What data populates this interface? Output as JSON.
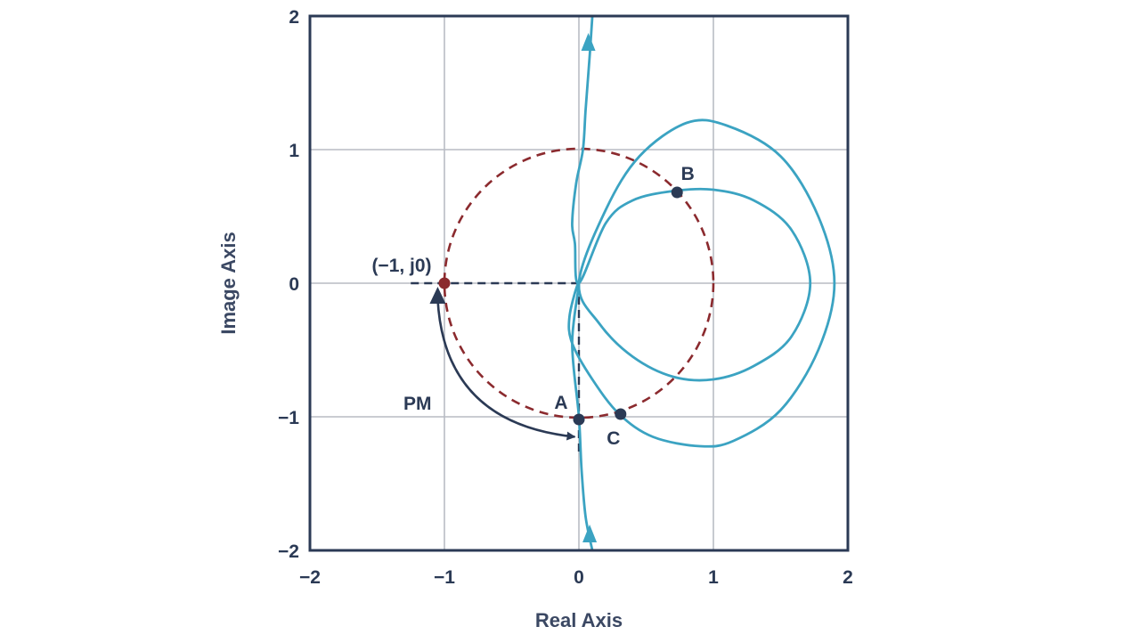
{
  "chart_data": {
    "type": "scatter",
    "title": "",
    "xlabel": "Real Axis",
    "ylabel": "Image Axis",
    "xlim": [
      -2,
      2
    ],
    "ylim": [
      -2,
      2
    ],
    "xticks": [
      -2,
      -1,
      0,
      1,
      2
    ],
    "yticks": [
      -2,
      -1,
      0,
      1,
      2
    ],
    "xtick_labels": [
      "−2",
      "−1",
      "0",
      "1",
      "2"
    ],
    "ytick_labels": [
      "−2",
      "−1",
      "0",
      "1",
      "2"
    ],
    "grid": true,
    "unit_circle": {
      "center": [
        0,
        0
      ],
      "radius": 1,
      "style": "dashed",
      "color": "#8b2a2e"
    },
    "nyquist_curve": {
      "color": "#3ba3c2",
      "points": [
        [
          0.1,
          2.0
        ],
        [
          0.08,
          1.7
        ],
        [
          0.05,
          1.3
        ],
        [
          0.03,
          1.0
        ],
        [
          -0.02,
          0.75
        ],
        [
          -0.05,
          0.45
        ],
        [
          -0.03,
          0.3
        ],
        [
          0.0,
          0.0
        ],
        [
          0.2,
          0.45
        ],
        [
          0.4,
          0.62
        ],
        [
          0.7,
          0.69
        ],
        [
          1.0,
          0.7
        ],
        [
          1.3,
          0.62
        ],
        [
          1.58,
          0.4
        ],
        [
          1.72,
          0.0
        ],
        [
          1.58,
          -0.4
        ],
        [
          1.3,
          -0.62
        ],
        [
          1.0,
          -0.72
        ],
        [
          0.7,
          -0.7
        ],
        [
          0.4,
          -0.55
        ],
        [
          0.15,
          -0.3
        ],
        [
          0.0,
          0.0
        ],
        [
          0.2,
          0.55
        ],
        [
          0.45,
          0.95
        ],
        [
          0.8,
          1.2
        ],
        [
          1.1,
          1.18
        ],
        [
          1.5,
          0.95
        ],
        [
          1.78,
          0.5
        ],
        [
          1.9,
          0.0
        ],
        [
          1.78,
          -0.5
        ],
        [
          1.5,
          -0.95
        ],
        [
          1.15,
          -1.18
        ],
        [
          0.9,
          -1.22
        ],
        [
          0.55,
          -1.15
        ],
        [
          0.3,
          -0.98
        ],
        [
          0.1,
          -0.72
        ],
        [
          -0.05,
          -0.45
        ],
        [
          -0.07,
          -0.25
        ],
        [
          0.0,
          0.0
        ],
        [
          -0.05,
          -0.45
        ],
        [
          0.0,
          -1.0
        ],
        [
          0.02,
          -1.4
        ],
        [
          0.05,
          -1.75
        ],
        [
          0.1,
          -2.0
        ]
      ]
    },
    "points": [
      {
        "label": "(−1, j0)",
        "x": -1.0,
        "y": 0.0,
        "color": "#8b2a2e"
      },
      {
        "label": "A",
        "x": 0.0,
        "y": -1.02,
        "color": "#2b3a55"
      },
      {
        "label": "B",
        "x": 0.73,
        "y": 0.68,
        "color": "#2b3a55"
      },
      {
        "label": "C",
        "x": 0.31,
        "y": -0.98,
        "color": "#2b3a55"
      }
    ],
    "reference_lines": [
      {
        "from": [
          -1.25,
          0.0
        ],
        "to": [
          0.0,
          0.0
        ],
        "style": "dashed",
        "color": "#2b3a55"
      },
      {
        "from": [
          0.0,
          0.0
        ],
        "to": [
          0.0,
          -1.3
        ],
        "style": "dashed",
        "color": "#2b3a55"
      }
    ],
    "annotations": [
      {
        "text": "PM",
        "x": -1.2,
        "y": -0.9
      }
    ],
    "colors": {
      "axis": "#2b3a55",
      "grid": "#b9bcc4",
      "curve": "#3ba3c2",
      "unit_circle": "#8b2a2e"
    }
  }
}
